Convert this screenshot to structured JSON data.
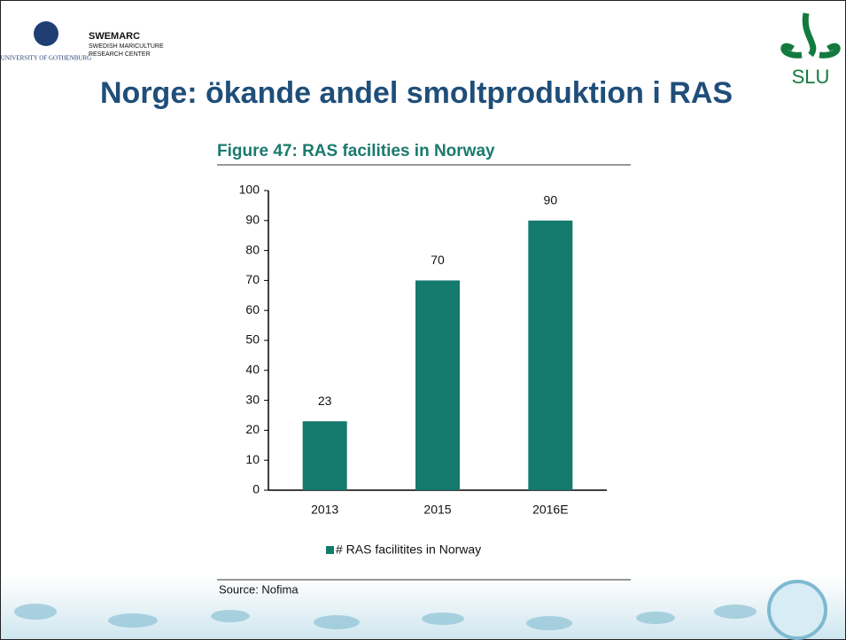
{
  "slide": {
    "university": "UNIVERSITY OF GOTHENBURG",
    "center_name": "SWEMARC",
    "center_line1": "SWEDISH MARICULTURE",
    "center_line2": "RESEARCH CENTER",
    "slu": "SLU",
    "title": "Norge: ökande andel smoltproduktion i RAS"
  },
  "chart_data": {
    "type": "bar",
    "title": "Figure 47: RAS facilities in Norway",
    "categories": [
      "2013",
      "2015",
      "2016E"
    ],
    "series": [
      {
        "name": "# RAS facilitites in Norway",
        "color": "#137a6d",
        "values": [
          23,
          70,
          90
        ]
      }
    ],
    "ylim": [
      0,
      100
    ],
    "yticks": [
      0,
      10,
      20,
      30,
      40,
      50,
      60,
      70,
      80,
      90,
      100
    ],
    "source": "Source: Nofima"
  }
}
